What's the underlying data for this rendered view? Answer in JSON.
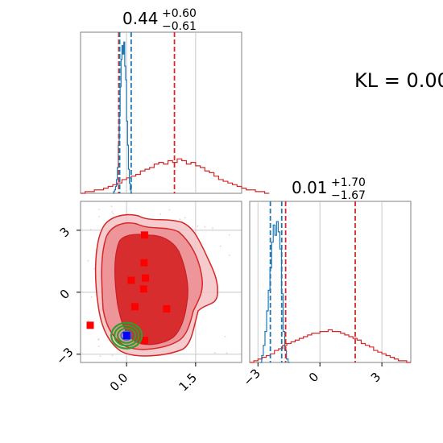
{
  "kl_text": "KL = 0.00",
  "colors": {
    "red": "#d62728",
    "red_dark": "#c81e28",
    "blue": "#1f77b4",
    "green": "#2ca02c",
    "frame": "#808080",
    "grid": "#c8c8c8"
  },
  "chart_data": [
    {
      "type": "histogram",
      "panel": "marginal-x",
      "title_main": "0.44",
      "title_sup": "+0.60",
      "title_sub": "−0.61",
      "xlim": [
        -1.0,
        2.5
      ],
      "grid": true,
      "series": [
        {
          "color": "red",
          "bin_width": 0.1,
          "bin_start": -1.0,
          "heights": [
            0.0,
            0.01,
            0.01,
            0.02,
            0.02,
            0.03,
            0.04,
            0.05,
            0.06,
            0.08,
            0.09,
            0.1,
            0.11,
            0.13,
            0.14,
            0.15,
            0.17,
            0.18,
            0.17,
            0.19,
            0.18,
            0.2,
            0.19,
            0.17,
            0.18,
            0.16,
            0.15,
            0.13,
            0.12,
            0.1,
            0.08,
            0.07,
            0.06,
            0.05,
            0.04,
            0.03,
            0.02,
            0.02,
            0.01,
            0.01,
            0.0
          ],
          "quantiles": [
            -0.17,
            1.04
          ]
        },
        {
          "color": "blue",
          "bin_width": 0.02,
          "bin_start": -0.3,
          "heights": [
            0.0,
            0.01,
            0.02,
            0.04,
            0.08,
            0.15,
            0.28,
            0.45,
            0.62,
            0.78,
            0.86,
            0.81,
            0.88,
            0.74,
            0.66,
            0.42,
            0.28,
            0.14,
            0.06,
            0.02,
            0.0
          ],
          "quantiles": [
            -0.15,
            0.1
          ]
        }
      ]
    },
    {
      "type": "histogram",
      "panel": "marginal-y",
      "title_main": "0.01",
      "title_sup": "+1.70",
      "title_sub": "−1.67",
      "xlim": [
        -3.4,
        4.4
      ],
      "xticks": [
        -3,
        0,
        3
      ],
      "xtick_labels": [
        "−3",
        "0",
        "3"
      ],
      "grid": true,
      "series": [
        {
          "color": "red",
          "bin_width": 0.2,
          "bin_start": -3.4,
          "heights": [
            0.0,
            0.01,
            0.02,
            0.03,
            0.04,
            0.05,
            0.07,
            0.08,
            0.1,
            0.11,
            0.12,
            0.13,
            0.14,
            0.15,
            0.16,
            0.17,
            0.17,
            0.18,
            0.18,
            0.19,
            0.18,
            0.18,
            0.17,
            0.16,
            0.15,
            0.14,
            0.13,
            0.11,
            0.1,
            0.09,
            0.07,
            0.06,
            0.05,
            0.04,
            0.03,
            0.02,
            0.01,
            0.01,
            0.0
          ],
          "quantiles": [
            -1.66,
            1.71
          ]
        },
        {
          "color": "blue",
          "bin_width": 0.08,
          "bin_start": -2.9,
          "heights": [
            0.0,
            0.04,
            0.1,
            0.18,
            0.3,
            0.42,
            0.55,
            0.7,
            0.8,
            0.74,
            0.82,
            0.76,
            0.66,
            0.4,
            0.18,
            0.07,
            0.02,
            0.0
          ],
          "quantiles": [
            -2.4,
            -1.85
          ]
        }
      ]
    },
    {
      "type": "contour",
      "panel": "joint",
      "xlim": [
        -1.0,
        2.5
      ],
      "ylim": [
        -3.4,
        4.4
      ],
      "xticks": [
        0.0,
        1.5
      ],
      "xtick_labels": [
        "0.0",
        "1.5"
      ],
      "yticks": [
        -3,
        0,
        3
      ],
      "ytick_labels": [
        "−3",
        "0",
        "3"
      ],
      "grid": true,
      "red_points": [
        [
          0.39,
          2.77
        ],
        [
          0.38,
          1.43
        ],
        [
          0.41,
          0.69
        ],
        [
          0.1,
          0.58
        ],
        [
          0.37,
          0.16
        ],
        [
          0.18,
          -0.7
        ],
        [
          0.87,
          -0.8
        ],
        [
          -0.79,
          -1.6
        ],
        [
          0.39,
          -2.33
        ]
      ],
      "blue_point": [
        0.0,
        -2.1
      ],
      "green_center": [
        0.0,
        -2.1
      ]
    }
  ]
}
